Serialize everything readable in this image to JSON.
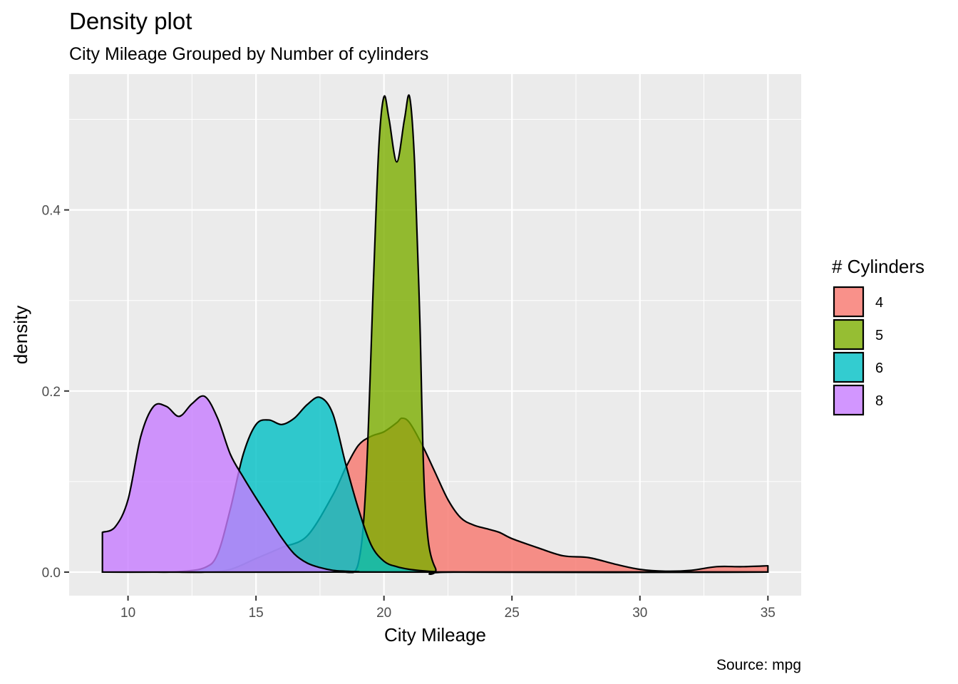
{
  "chart_data": {
    "type": "area",
    "title": "Density plot",
    "subtitle": "City Mileage Grouped by Number of cylinders",
    "xlabel": "City Mileage",
    "ylabel": "density",
    "caption": "Source: mpg",
    "xlim": [
      7.7,
      36.3
    ],
    "ylim": [
      -0.026,
      0.55
    ],
    "x_ticks": [
      10,
      15,
      20,
      25,
      30,
      35
    ],
    "y_ticks": [
      0.0,
      0.2,
      0.4
    ],
    "y_tick_labels": [
      "0.0",
      "0.2",
      "0.4"
    ],
    "grid": true,
    "legend": {
      "title": "# Cylinders",
      "position": "right"
    },
    "series": [
      {
        "name": "4",
        "color": "#F8766D",
        "x": [
          9,
          10,
          12,
          13,
          14,
          15,
          16,
          17,
          18,
          18.5,
          19,
          19.5,
          20,
          20.5,
          20.7,
          21,
          21.5,
          22,
          22.5,
          23,
          23.5,
          24,
          24.5,
          25,
          26,
          27,
          28,
          29,
          30,
          31,
          32,
          33,
          34,
          35
        ],
        "y": [
          0,
          0,
          0,
          0,
          0.003,
          0.015,
          0.027,
          0.04,
          0.085,
          0.115,
          0.14,
          0.15,
          0.155,
          0.165,
          0.17,
          0.165,
          0.14,
          0.11,
          0.08,
          0.06,
          0.052,
          0.048,
          0.044,
          0.037,
          0.027,
          0.018,
          0.016,
          0.009,
          0.003,
          0.001,
          0.002,
          0.006,
          0.006,
          0.007
        ]
      },
      {
        "name": "5",
        "color": "#7CAE00",
        "x": [
          9,
          18,
          18.5,
          19,
          19.3,
          19.6,
          19.8,
          20.0,
          20.2,
          20.5,
          20.8,
          21.0,
          21.2,
          21.4,
          21.6,
          22,
          23,
          35
        ],
        "y": [
          0,
          0,
          0.0005,
          0.01,
          0.1,
          0.33,
          0.47,
          0.525,
          0.5,
          0.453,
          0.5,
          0.525,
          0.45,
          0.28,
          0.08,
          0.005,
          0,
          0
        ]
      },
      {
        "name": "6",
        "color": "#00BFC4",
        "x": [
          9,
          11,
          12,
          13,
          13.5,
          14,
          14.5,
          15,
          15.5,
          16,
          16.5,
          17,
          17.5,
          18,
          18.5,
          19,
          19.5,
          20,
          20.5,
          21,
          21.5,
          22,
          23,
          35
        ],
        "y": [
          0,
          0,
          0.0005,
          0.005,
          0.02,
          0.07,
          0.13,
          0.163,
          0.168,
          0.163,
          0.17,
          0.185,
          0.193,
          0.175,
          0.12,
          0.07,
          0.03,
          0.012,
          0.006,
          0.003,
          0.0015,
          0.0005,
          0,
          0
        ]
      },
      {
        "name": "8",
        "color": "#C77CFF",
        "x": [
          9,
          9.5,
          10,
          10.5,
          11,
          11.5,
          12,
          12.5,
          13,
          13.5,
          14,
          14.5,
          15,
          15.5,
          16,
          16.5,
          17,
          17.5,
          18,
          18.5,
          19,
          20,
          35
        ],
        "y": [
          0.044,
          0.05,
          0.08,
          0.15,
          0.183,
          0.183,
          0.172,
          0.186,
          0.194,
          0.17,
          0.13,
          0.105,
          0.082,
          0.06,
          0.038,
          0.02,
          0.01,
          0.005,
          0.002,
          0.001,
          0.0005,
          0,
          0
        ]
      }
    ]
  }
}
